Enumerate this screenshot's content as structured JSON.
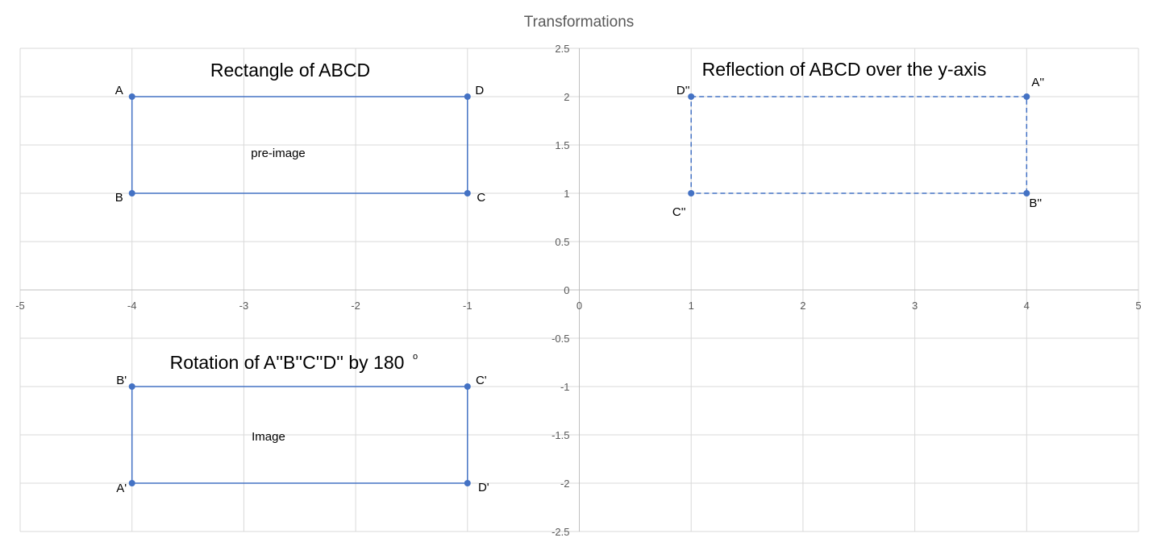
{
  "chart_data": {
    "type": "scatter",
    "title": "Transformations",
    "xlim": [
      -5,
      5
    ],
    "ylim": [
      -2.5,
      2.5
    ],
    "x_ticks": [
      -5,
      -4,
      -3,
      -2,
      -1,
      0,
      1,
      2,
      3,
      4,
      5
    ],
    "y_ticks": [
      2.5,
      2,
      1.5,
      1,
      0.5,
      0,
      -0.5,
      -1,
      -1.5,
      -2,
      -2.5
    ],
    "grid": true,
    "series": [
      {
        "key": "preimage",
        "line_style": "solid",
        "color": "#4472C4",
        "closed": true,
        "points": [
          {
            "label": "A",
            "x": -4,
            "y": 2
          },
          {
            "label": "D",
            "x": -1,
            "y": 2
          },
          {
            "label": "C",
            "x": -1,
            "y": 1
          },
          {
            "label": "B",
            "x": -4,
            "y": 1
          }
        ]
      },
      {
        "key": "reflection",
        "line_style": "dashed",
        "color": "#4472C4",
        "closed": true,
        "points": [
          {
            "label": "D''",
            "x": 1,
            "y": 2
          },
          {
            "label": "A''",
            "x": 4,
            "y": 2
          },
          {
            "label": "B''",
            "x": 4,
            "y": 1
          },
          {
            "label": "C''",
            "x": 1,
            "y": 1
          }
        ]
      },
      {
        "key": "rotation",
        "line_style": "solid",
        "color": "#4472C4",
        "closed": true,
        "points": [
          {
            "label": "B'",
            "x": -4,
            "y": -1
          },
          {
            "label": "C'",
            "x": -1,
            "y": -1
          },
          {
            "label": "D'",
            "x": -1,
            "y": -2
          },
          {
            "label": "A'",
            "x": -4,
            "y": -2
          }
        ]
      }
    ],
    "annotations": [
      {
        "key": "title_preimage",
        "text": "Rectangle of  ABCD"
      },
      {
        "key": "title_reflection",
        "text": "Reflection of  ABCD over the y-axis"
      },
      {
        "key": "title_rotation",
        "text": "Rotation of  A''B''C''D'' by 180"
      },
      {
        "key": "degree_mark",
        "text": "o"
      },
      {
        "key": "note_preimage",
        "text": "pre-image"
      },
      {
        "key": "note_image",
        "text": "Image"
      }
    ]
  }
}
